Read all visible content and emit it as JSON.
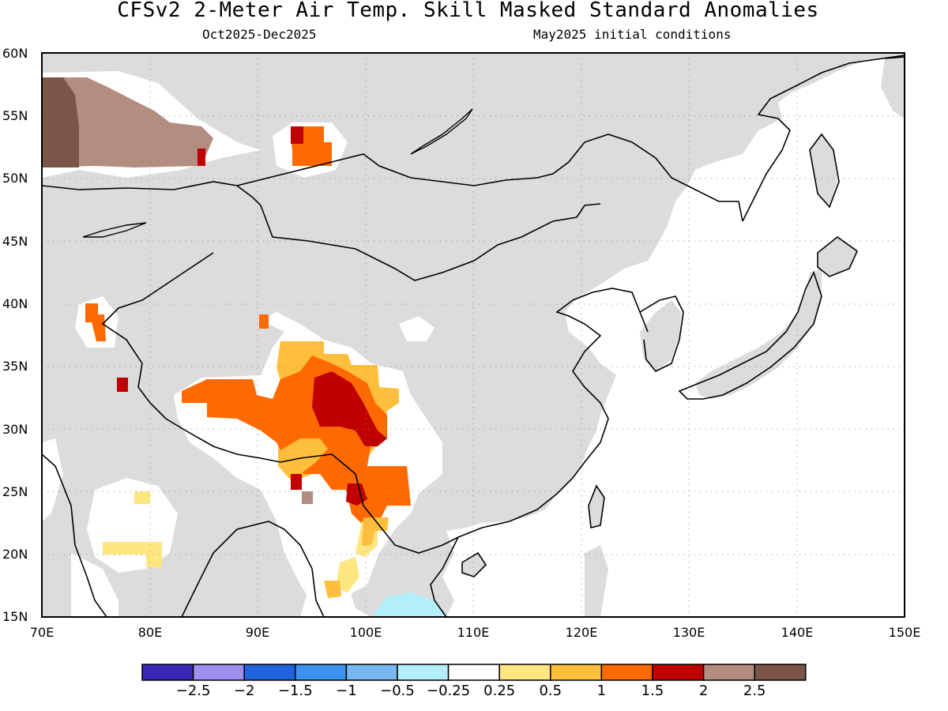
{
  "title": "CFSv2 2-Meter Air Temp. Skill Masked Standard Anomalies",
  "subtitle_left": "Oct2025-Dec2025",
  "subtitle_right": "May2025 initial conditions",
  "map": {
    "lon_range": [
      70,
      150
    ],
    "lat_range": [
      15,
      60
    ],
    "lat_ticks": [
      "15N",
      "20N",
      "25N",
      "30N",
      "35N",
      "40N",
      "45N",
      "50N",
      "55N",
      "60N"
    ],
    "lon_ticks": [
      "70E",
      "80E",
      "90E",
      "100E",
      "110E",
      "120E",
      "130E",
      "140E",
      "150E"
    ],
    "grid": "dotted",
    "land_color": "#dcdcdc",
    "ocean_color": "#ffffff"
  },
  "colorbar": {
    "colors": [
      "#3b27b5",
      "#9e90f2",
      "#1f64dd",
      "#3a94ef",
      "#79b7f2",
      "#b3eefb",
      "#ffffff",
      "#ffe680",
      "#ffbf3d",
      "#ff6a00",
      "#c00000",
      "#b38d80",
      "#7a5548"
    ],
    "labels": [
      "-2.5",
      "-2",
      "-1.5",
      "-1",
      "-0.5",
      "-0.25",
      "0.25",
      "0.5",
      "1",
      "1.5",
      "2",
      "2.5"
    ]
  }
}
